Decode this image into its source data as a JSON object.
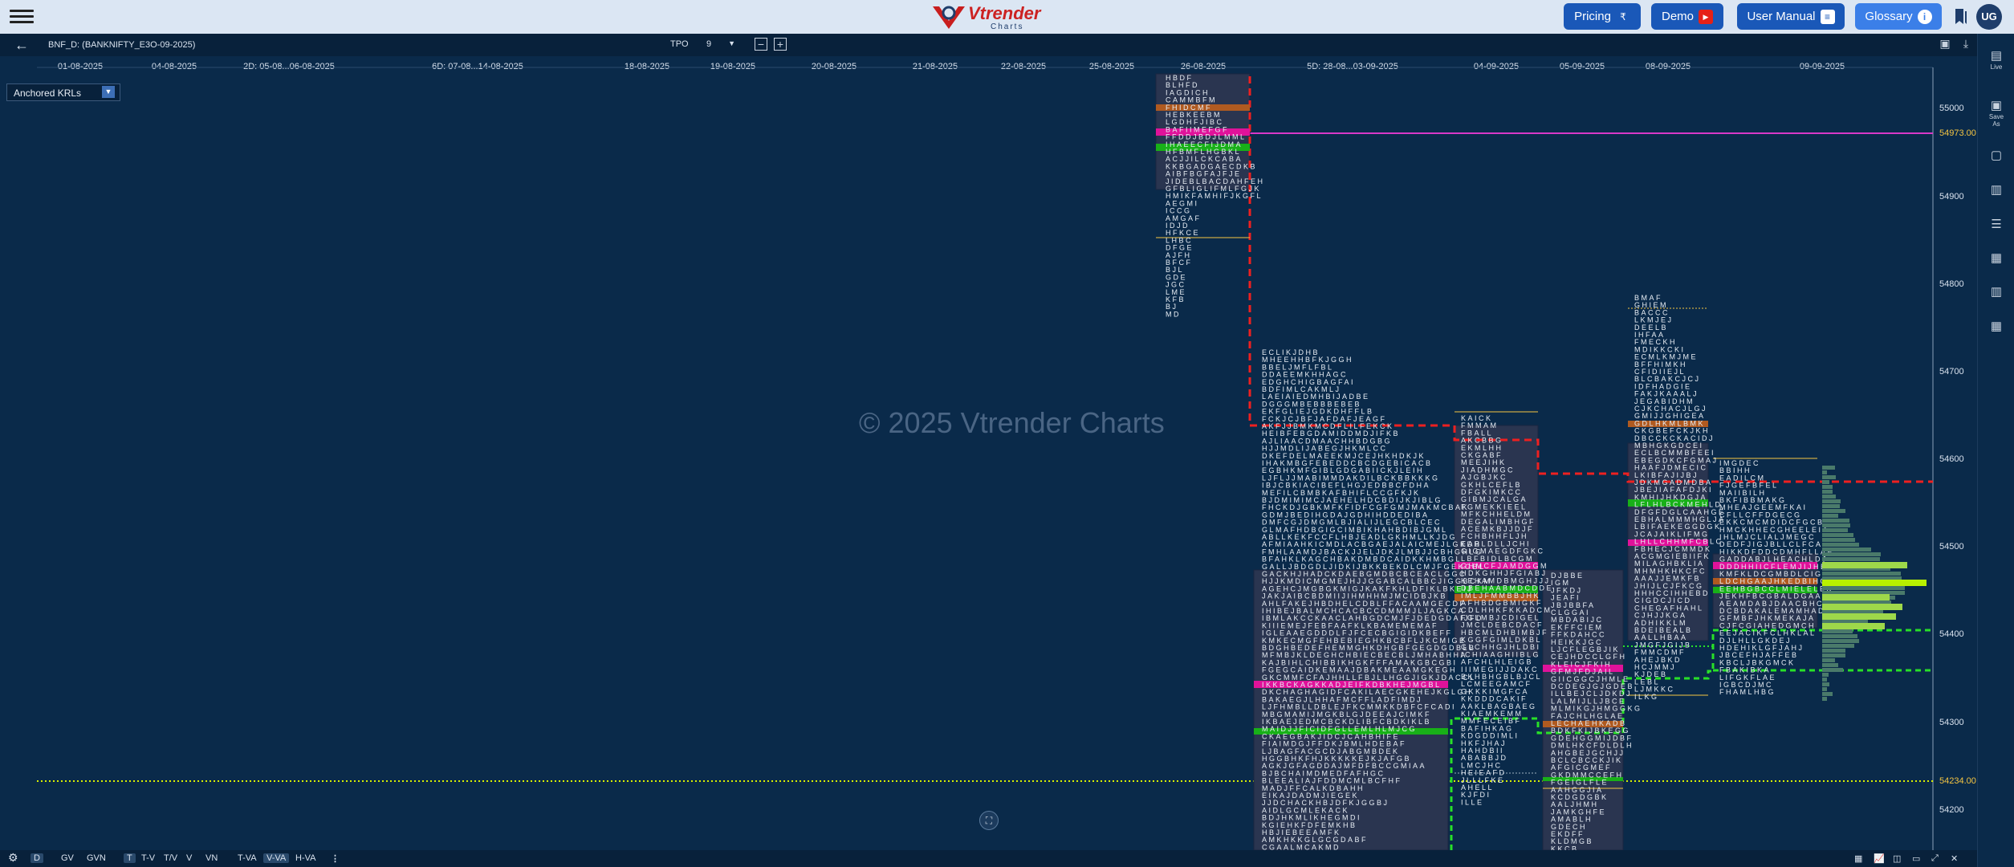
{
  "header": {
    "brand": {
      "name": "Vtrender",
      "sub": "Charts"
    },
    "buttons": [
      {
        "label": "Pricing",
        "icon": "₹"
      },
      {
        "label": "Demo",
        "icon": "▶"
      },
      {
        "label": "User Manual",
        "icon": "≡"
      },
      {
        "label": "Glossary",
        "icon": "i"
      }
    ],
    "avatar": "UG"
  },
  "toolbar": {
    "symbol": "BNF_D: (BANKNIFTY_E3O-09-2025)",
    "tpo_label": "TPO",
    "tpo_value": "9"
  },
  "dates": [
    "01-08-2025",
    "04-08-2025",
    "2D: 05-08...06-08-2025",
    "6D: 07-08...14-08-2025",
    "18-08-2025",
    "19-08-2025",
    "20-08-2025",
    "21-08-2025",
    "22-08-2025",
    "25-08-2025",
    "26-08-2025",
    "5D: 28-08...03-09-2025",
    "04-09-2025",
    "05-09-2025",
    "08-09-2025",
    "09-09-2025"
  ],
  "anchored": {
    "label": "Anchored KRLs"
  },
  "watermark": "© 2025 Vtrender Charts",
  "price_axis": {
    "ticks": [
      "55000",
      "54900",
      "54800",
      "54700",
      "54600",
      "54500",
      "54400",
      "54300",
      "54200"
    ],
    "hl1": "54973.00",
    "hl2": "54234.00"
  },
  "right_sidebar": {
    "live": "Live",
    "save_as": "Save As"
  },
  "bottom": {
    "tabs": [
      "D",
      "GV",
      "GVN",
      "T",
      "T-V",
      "T/V",
      "V",
      "VN",
      "T-VA",
      "V-VA",
      "H-VA"
    ]
  },
  "colors": {
    "bg": "#0a2a4a",
    "accent": "#1a58b8",
    "poc": "#e0129a",
    "va": "#18b018",
    "letters": "#e8eef5"
  }
}
